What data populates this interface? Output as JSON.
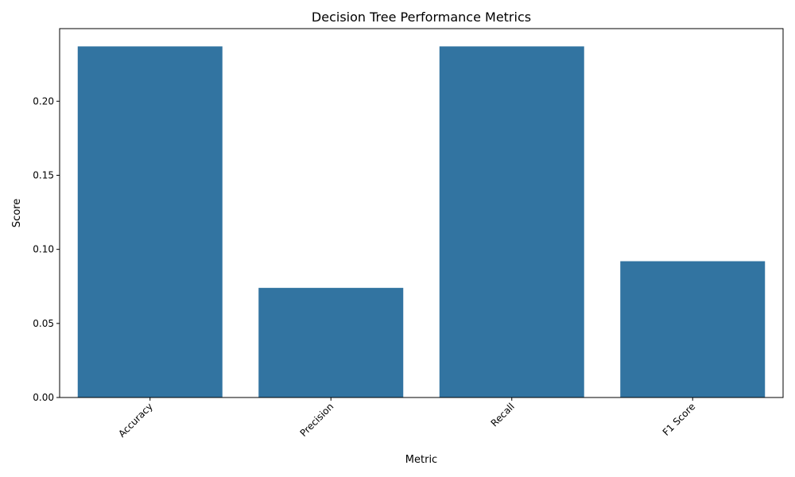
{
  "chart_data": {
    "type": "bar",
    "title": "Decision Tree Performance Metrics",
    "xlabel": "Metric",
    "ylabel": "Score",
    "categories": [
      "Accuracy",
      "Precision",
      "Recall",
      "F1 Score"
    ],
    "values": [
      0.237,
      0.074,
      0.237,
      0.092
    ],
    "ylim": [
      0,
      0.249
    ],
    "yticks": [
      0.0,
      0.05,
      0.1,
      0.15,
      0.2
    ],
    "ytick_labels": [
      "0.00",
      "0.05",
      "0.10",
      "0.15",
      "0.20"
    ],
    "xtick_rotation": "45 degrees",
    "grid": false,
    "legend": "none",
    "bar_color": "#3274a1"
  }
}
